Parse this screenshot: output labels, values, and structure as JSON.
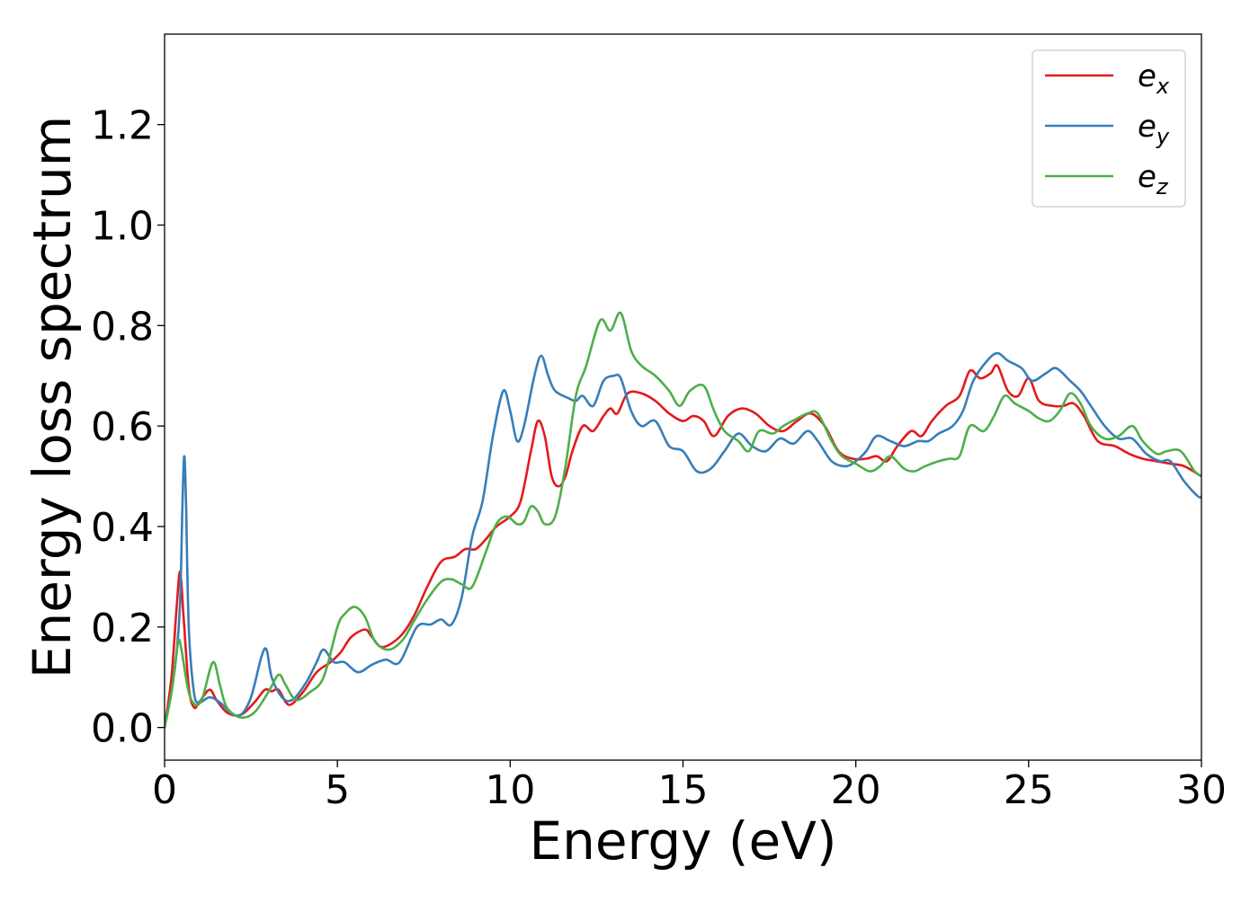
{
  "chart_data": {
    "type": "line",
    "title": "",
    "xlabel": "Energy (eV)",
    "ylabel": "Energy loss spectrum",
    "xlim": [
      0,
      30
    ],
    "ylim": [
      -0.065,
      1.38
    ],
    "xticks": [
      0,
      5,
      10,
      15,
      20,
      25,
      30
    ],
    "xtick_labels": [
      "0",
      "5",
      "10",
      "15",
      "20",
      "25",
      "30"
    ],
    "yticks": [
      0.0,
      0.2,
      0.4,
      0.6,
      0.8,
      1.0,
      1.2
    ],
    "ytick_labels": [
      "0.0",
      "0.2",
      "0.4",
      "0.6",
      "0.8",
      "1.0",
      "1.2"
    ],
    "grid": false,
    "legend": {
      "placement": "top-right",
      "entries": [
        {
          "base": "e",
          "sub": "x"
        },
        {
          "base": "e",
          "sub": "y"
        },
        {
          "base": "e",
          "sub": "z"
        }
      ]
    },
    "series": [
      {
        "color": "#e41a1c",
        "points": [
          [
            0,
            0
          ],
          [
            0.2,
            0.1
          ],
          [
            0.35,
            0.24
          ],
          [
            0.45,
            0.31
          ],
          [
            0.55,
            0.22
          ],
          [
            0.7,
            0.08
          ],
          [
            0.85,
            0.04
          ],
          [
            1.0,
            0.05
          ],
          [
            1.3,
            0.075
          ],
          [
            1.5,
            0.055
          ],
          [
            1.8,
            0.03
          ],
          [
            2.2,
            0.025
          ],
          [
            2.6,
            0.05
          ],
          [
            2.9,
            0.075
          ],
          [
            3.1,
            0.072
          ],
          [
            3.3,
            0.075
          ],
          [
            3.6,
            0.045
          ],
          [
            4.0,
            0.07
          ],
          [
            4.4,
            0.11
          ],
          [
            4.8,
            0.13
          ],
          [
            5.1,
            0.15
          ],
          [
            5.4,
            0.18
          ],
          [
            5.8,
            0.195
          ],
          [
            6.0,
            0.18
          ],
          [
            6.3,
            0.16
          ],
          [
            6.8,
            0.18
          ],
          [
            7.2,
            0.22
          ],
          [
            7.6,
            0.28
          ],
          [
            8.0,
            0.33
          ],
          [
            8.4,
            0.34
          ],
          [
            8.7,
            0.355
          ],
          [
            9.0,
            0.355
          ],
          [
            9.3,
            0.375
          ],
          [
            9.6,
            0.4
          ],
          [
            10.0,
            0.42
          ],
          [
            10.3,
            0.45
          ],
          [
            10.6,
            0.55
          ],
          [
            10.8,
            0.61
          ],
          [
            11.0,
            0.58
          ],
          [
            11.2,
            0.5
          ],
          [
            11.4,
            0.48
          ],
          [
            11.6,
            0.5
          ],
          [
            11.8,
            0.55
          ],
          [
            12.1,
            0.6
          ],
          [
            12.4,
            0.59
          ],
          [
            12.7,
            0.62
          ],
          [
            12.9,
            0.635
          ],
          [
            13.1,
            0.625
          ],
          [
            13.4,
            0.665
          ],
          [
            13.8,
            0.665
          ],
          [
            14.2,
            0.65
          ],
          [
            14.6,
            0.625
          ],
          [
            15.0,
            0.61
          ],
          [
            15.3,
            0.62
          ],
          [
            15.6,
            0.61
          ],
          [
            15.9,
            0.58
          ],
          [
            16.3,
            0.62
          ],
          [
            16.7,
            0.635
          ],
          [
            17.1,
            0.625
          ],
          [
            17.5,
            0.6
          ],
          [
            17.9,
            0.59
          ],
          [
            18.3,
            0.61
          ],
          [
            18.7,
            0.625
          ],
          [
            19.1,
            0.6
          ],
          [
            19.5,
            0.55
          ],
          [
            19.9,
            0.535
          ],
          [
            20.3,
            0.535
          ],
          [
            20.6,
            0.54
          ],
          [
            20.9,
            0.53
          ],
          [
            21.2,
            0.56
          ],
          [
            21.6,
            0.59
          ],
          [
            21.9,
            0.58
          ],
          [
            22.2,
            0.61
          ],
          [
            22.6,
            0.64
          ],
          [
            23.0,
            0.66
          ],
          [
            23.3,
            0.71
          ],
          [
            23.6,
            0.695
          ],
          [
            23.9,
            0.705
          ],
          [
            24.1,
            0.72
          ],
          [
            24.4,
            0.67
          ],
          [
            24.7,
            0.66
          ],
          [
            25.0,
            0.695
          ],
          [
            25.3,
            0.65
          ],
          [
            25.7,
            0.64
          ],
          [
            26.0,
            0.64
          ],
          [
            26.3,
            0.645
          ],
          [
            26.6,
            0.62
          ],
          [
            27.0,
            0.57
          ],
          [
            27.5,
            0.56
          ],
          [
            27.9,
            0.545
          ],
          [
            28.3,
            0.535
          ],
          [
            28.7,
            0.53
          ],
          [
            29.1,
            0.525
          ],
          [
            29.5,
            0.52
          ],
          [
            30.0,
            0.5
          ]
        ]
      },
      {
        "color": "#377eb8",
        "points": [
          [
            0,
            0
          ],
          [
            0.2,
            0.07
          ],
          [
            0.35,
            0.15
          ],
          [
            0.45,
            0.25
          ],
          [
            0.52,
            0.45
          ],
          [
            0.57,
            0.54
          ],
          [
            0.62,
            0.45
          ],
          [
            0.7,
            0.2
          ],
          [
            0.85,
            0.07
          ],
          [
            1.0,
            0.05
          ],
          [
            1.3,
            0.06
          ],
          [
            1.6,
            0.05
          ],
          [
            1.9,
            0.03
          ],
          [
            2.2,
            0.025
          ],
          [
            2.5,
            0.06
          ],
          [
            2.8,
            0.14
          ],
          [
            2.95,
            0.155
          ],
          [
            3.1,
            0.1
          ],
          [
            3.4,
            0.06
          ],
          [
            3.7,
            0.055
          ],
          [
            4.1,
            0.09
          ],
          [
            4.4,
            0.13
          ],
          [
            4.6,
            0.155
          ],
          [
            4.9,
            0.13
          ],
          [
            5.2,
            0.13
          ],
          [
            5.6,
            0.11
          ],
          [
            6.0,
            0.125
          ],
          [
            6.4,
            0.135
          ],
          [
            6.8,
            0.13
          ],
          [
            7.3,
            0.2
          ],
          [
            7.7,
            0.205
          ],
          [
            8.0,
            0.215
          ],
          [
            8.3,
            0.205
          ],
          [
            8.6,
            0.26
          ],
          [
            8.9,
            0.38
          ],
          [
            9.2,
            0.45
          ],
          [
            9.5,
            0.58
          ],
          [
            9.8,
            0.67
          ],
          [
            10.0,
            0.63
          ],
          [
            10.2,
            0.57
          ],
          [
            10.4,
            0.6
          ],
          [
            10.7,
            0.7
          ],
          [
            10.9,
            0.74
          ],
          [
            11.1,
            0.7
          ],
          [
            11.3,
            0.67
          ],
          [
            11.7,
            0.655
          ],
          [
            11.9,
            0.65
          ],
          [
            12.1,
            0.66
          ],
          [
            12.4,
            0.64
          ],
          [
            12.7,
            0.69
          ],
          [
            13.0,
            0.7
          ],
          [
            13.2,
            0.695
          ],
          [
            13.5,
            0.63
          ],
          [
            13.8,
            0.6
          ],
          [
            14.2,
            0.61
          ],
          [
            14.6,
            0.56
          ],
          [
            15.0,
            0.55
          ],
          [
            15.4,
            0.51
          ],
          [
            15.8,
            0.515
          ],
          [
            16.2,
            0.55
          ],
          [
            16.6,
            0.585
          ],
          [
            17.0,
            0.56
          ],
          [
            17.4,
            0.55
          ],
          [
            17.8,
            0.575
          ],
          [
            18.2,
            0.565
          ],
          [
            18.6,
            0.59
          ],
          [
            18.9,
            0.57
          ],
          [
            19.3,
            0.53
          ],
          [
            19.7,
            0.52
          ],
          [
            20.0,
            0.53
          ],
          [
            20.3,
            0.55
          ],
          [
            20.6,
            0.58
          ],
          [
            21.0,
            0.57
          ],
          [
            21.4,
            0.56
          ],
          [
            21.8,
            0.57
          ],
          [
            22.1,
            0.57
          ],
          [
            22.4,
            0.585
          ],
          [
            22.8,
            0.6
          ],
          [
            23.1,
            0.63
          ],
          [
            23.4,
            0.69
          ],
          [
            23.8,
            0.73
          ],
          [
            24.1,
            0.745
          ],
          [
            24.4,
            0.73
          ],
          [
            24.8,
            0.715
          ],
          [
            25.1,
            0.69
          ],
          [
            25.5,
            0.705
          ],
          [
            25.8,
            0.715
          ],
          [
            26.2,
            0.69
          ],
          [
            26.5,
            0.67
          ],
          [
            26.8,
            0.64
          ],
          [
            27.2,
            0.6
          ],
          [
            27.6,
            0.575
          ],
          [
            28.0,
            0.575
          ],
          [
            28.4,
            0.545
          ],
          [
            28.8,
            0.53
          ],
          [
            29.1,
            0.53
          ],
          [
            29.5,
            0.49
          ],
          [
            29.9,
            0.46
          ],
          [
            30.0,
            0.46
          ]
        ]
      },
      {
        "color": "#4daf4a",
        "points": [
          [
            0,
            0
          ],
          [
            0.2,
            0.07
          ],
          [
            0.35,
            0.15
          ],
          [
            0.42,
            0.175
          ],
          [
            0.5,
            0.15
          ],
          [
            0.7,
            0.07
          ],
          [
            0.9,
            0.045
          ],
          [
            1.1,
            0.06
          ],
          [
            1.4,
            0.13
          ],
          [
            1.6,
            0.085
          ],
          [
            1.8,
            0.04
          ],
          [
            2.2,
            0.02
          ],
          [
            2.6,
            0.03
          ],
          [
            3.0,
            0.07
          ],
          [
            3.3,
            0.105
          ],
          [
            3.5,
            0.085
          ],
          [
            3.8,
            0.055
          ],
          [
            4.2,
            0.07
          ],
          [
            4.6,
            0.1
          ],
          [
            5.0,
            0.2
          ],
          [
            5.2,
            0.225
          ],
          [
            5.5,
            0.24
          ],
          [
            5.8,
            0.22
          ],
          [
            6.1,
            0.17
          ],
          [
            6.5,
            0.155
          ],
          [
            6.9,
            0.175
          ],
          [
            7.2,
            0.21
          ],
          [
            7.6,
            0.255
          ],
          [
            8.0,
            0.29
          ],
          [
            8.3,
            0.295
          ],
          [
            8.6,
            0.285
          ],
          [
            8.9,
            0.28
          ],
          [
            9.3,
            0.35
          ],
          [
            9.6,
            0.405
          ],
          [
            9.9,
            0.42
          ],
          [
            10.2,
            0.405
          ],
          [
            10.4,
            0.41
          ],
          [
            10.6,
            0.44
          ],
          [
            10.8,
            0.43
          ],
          [
            11.0,
            0.405
          ],
          [
            11.3,
            0.42
          ],
          [
            11.6,
            0.52
          ],
          [
            11.9,
            0.66
          ],
          [
            12.2,
            0.72
          ],
          [
            12.6,
            0.81
          ],
          [
            12.9,
            0.79
          ],
          [
            13.2,
            0.825
          ],
          [
            13.5,
            0.75
          ],
          [
            13.8,
            0.72
          ],
          [
            14.2,
            0.7
          ],
          [
            14.6,
            0.67
          ],
          [
            14.9,
            0.64
          ],
          [
            15.2,
            0.67
          ],
          [
            15.6,
            0.68
          ],
          [
            15.9,
            0.63
          ],
          [
            16.2,
            0.59
          ],
          [
            16.6,
            0.57
          ],
          [
            16.9,
            0.55
          ],
          [
            17.2,
            0.59
          ],
          [
            17.6,
            0.585
          ],
          [
            17.9,
            0.6
          ],
          [
            18.3,
            0.615
          ],
          [
            18.6,
            0.625
          ],
          [
            18.9,
            0.625
          ],
          [
            19.3,
            0.57
          ],
          [
            19.6,
            0.54
          ],
          [
            20.0,
            0.525
          ],
          [
            20.4,
            0.51
          ],
          [
            20.7,
            0.52
          ],
          [
            21.0,
            0.54
          ],
          [
            21.4,
            0.515
          ],
          [
            21.7,
            0.51
          ],
          [
            22.0,
            0.52
          ],
          [
            22.4,
            0.53
          ],
          [
            22.7,
            0.535
          ],
          [
            23.0,
            0.54
          ],
          [
            23.3,
            0.6
          ],
          [
            23.7,
            0.59
          ],
          [
            24.0,
            0.62
          ],
          [
            24.3,
            0.66
          ],
          [
            24.6,
            0.645
          ],
          [
            25.0,
            0.63
          ],
          [
            25.3,
            0.615
          ],
          [
            25.6,
            0.61
          ],
          [
            25.9,
            0.63
          ],
          [
            26.2,
            0.665
          ],
          [
            26.5,
            0.645
          ],
          [
            26.8,
            0.6
          ],
          [
            27.2,
            0.575
          ],
          [
            27.6,
            0.58
          ],
          [
            28.0,
            0.6
          ],
          [
            28.3,
            0.57
          ],
          [
            28.7,
            0.545
          ],
          [
            29.0,
            0.55
          ],
          [
            29.4,
            0.55
          ],
          [
            29.8,
            0.51
          ],
          [
            30.0,
            0.5
          ]
        ]
      }
    ]
  }
}
